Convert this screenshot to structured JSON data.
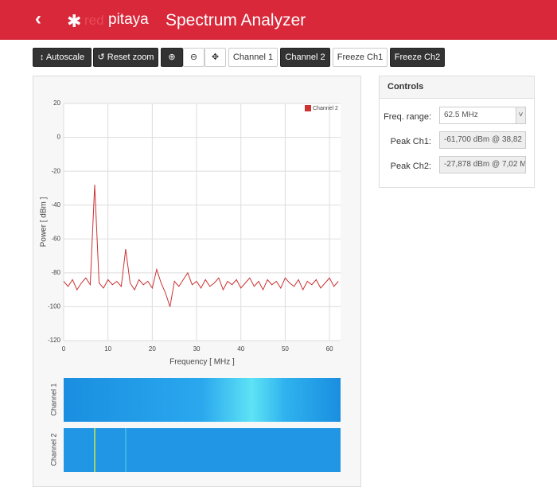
{
  "header": {
    "logo_prefix": "red",
    "logo_name": "pitaya",
    "title": "Spectrum Analyzer"
  },
  "toolbar": {
    "buttons": [
      "Autoscale",
      "Reset zoom",
      "Channel 1",
      "Channel 2",
      "Freeze Ch1",
      "Freeze Ch2"
    ]
  },
  "chart_data": {
    "type": "line",
    "xlabel": "Frequency [ MHz ]",
    "ylabel": "Power [ dBm ]",
    "x": [
      0,
      1,
      2,
      3,
      4,
      5,
      6,
      7,
      8,
      9,
      10,
      11,
      12,
      13,
      14,
      15,
      16,
      17,
      18,
      19,
      20,
      21,
      22,
      23,
      24,
      25,
      26,
      27,
      28,
      29,
      30,
      31,
      32,
      33,
      34,
      35,
      36,
      37,
      38,
      39,
      40,
      41,
      42,
      43,
      44,
      45,
      46,
      47,
      48,
      49,
      50,
      51,
      52,
      53,
      54,
      55,
      56,
      57,
      58,
      59,
      60,
      61,
      62
    ],
    "series": [
      {
        "name": "Channel 2",
        "color": "#cc3333",
        "values": [
          -85,
          -88,
          -84,
          -90,
          -86,
          -83,
          -87,
          -28,
          -86,
          -89,
          -84,
          -87,
          -85,
          -88,
          -66,
          -86,
          -90,
          -84,
          -87,
          -85,
          -89,
          -78,
          -86,
          -92,
          -100,
          -85,
          -88,
          -84,
          -80,
          -87,
          -85,
          -89,
          -84,
          -88,
          -86,
          -83,
          -90,
          -85,
          -87,
          -84,
          -89,
          -86,
          -83,
          -88,
          -85,
          -90,
          -84,
          -87,
          -85,
          -89,
          -83,
          -86,
          -88,
          -84,
          -90,
          -85,
          -87,
          -84,
          -89,
          -86,
          -83,
          -88,
          -85
        ]
      }
    ],
    "xlim": [
      0,
      62.5
    ],
    "ylim": [
      -120,
      20
    ],
    "xticks": [
      0,
      10,
      20,
      30,
      40,
      50,
      60
    ],
    "yticks": [
      -120,
      -100,
      -80,
      -60,
      -40,
      -20,
      0,
      20
    ],
    "grid": true,
    "legend": "top-right"
  },
  "waterfall": {
    "labels": [
      "Channel 1",
      "Channel 2"
    ]
  },
  "controls": {
    "title": "Controls",
    "fields": [
      {
        "label": "Freq. range:",
        "value": "62.5 MHz"
      },
      {
        "label": "Peak Ch1:",
        "value": "-61,700 dBm @ 38,82"
      },
      {
        "label": "Peak Ch2:",
        "value": "-27,878 dBm @ 7,02 M"
      }
    ]
  }
}
